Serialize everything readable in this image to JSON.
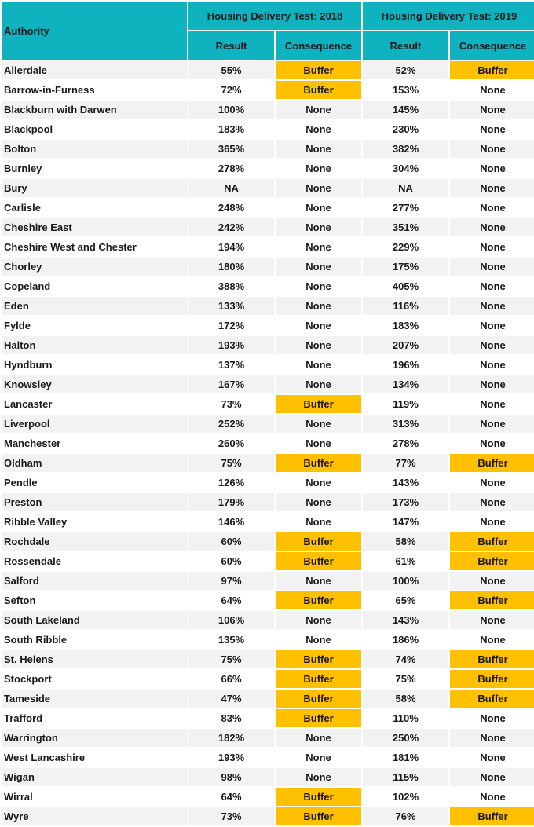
{
  "header": {
    "authority": "Authority",
    "group_2018": "Housing Delivery Test: 2018",
    "group_2019": "Housing Delivery Test: 2019",
    "result": "Result",
    "consequence": "Consequence"
  },
  "colors": {
    "header_bg": "#0fb3bf",
    "buffer_bg": "#ffc000",
    "row_alt_bg": "#f2f2f2"
  },
  "rows": [
    {
      "authority": "Allerdale",
      "r2018": "55%",
      "c2018": "Buffer",
      "r2019": "52%",
      "c2019": "Buffer"
    },
    {
      "authority": "Barrow-in-Furness",
      "r2018": "72%",
      "c2018": "Buffer",
      "r2019": "153%",
      "c2019": "None"
    },
    {
      "authority": "Blackburn with Darwen",
      "r2018": "100%",
      "c2018": "None",
      "r2019": "145%",
      "c2019": "None"
    },
    {
      "authority": "Blackpool",
      "r2018": "183%",
      "c2018": "None",
      "r2019": "230%",
      "c2019": "None"
    },
    {
      "authority": "Bolton",
      "r2018": "365%",
      "c2018": "None",
      "r2019": "382%",
      "c2019": "None"
    },
    {
      "authority": "Burnley",
      "r2018": "278%",
      "c2018": "None",
      "r2019": "304%",
      "c2019": "None"
    },
    {
      "authority": "Bury",
      "r2018": "NA",
      "c2018": "None",
      "r2019": "NA",
      "c2019": "None"
    },
    {
      "authority": "Carlisle",
      "r2018": "248%",
      "c2018": "None",
      "r2019": "277%",
      "c2019": "None"
    },
    {
      "authority": "Cheshire East",
      "r2018": "242%",
      "c2018": "None",
      "r2019": "351%",
      "c2019": "None"
    },
    {
      "authority": "Cheshire West and Chester",
      "r2018": "194%",
      "c2018": "None",
      "r2019": "229%",
      "c2019": "None"
    },
    {
      "authority": "Chorley",
      "r2018": "180%",
      "c2018": "None",
      "r2019": "175%",
      "c2019": "None"
    },
    {
      "authority": "Copeland",
      "r2018": "388%",
      "c2018": "None",
      "r2019": "405%",
      "c2019": "None"
    },
    {
      "authority": "Eden",
      "r2018": "133%",
      "c2018": "None",
      "r2019": "116%",
      "c2019": "None"
    },
    {
      "authority": "Fylde",
      "r2018": "172%",
      "c2018": "None",
      "r2019": "183%",
      "c2019": "None"
    },
    {
      "authority": "Halton",
      "r2018": "193%",
      "c2018": "None",
      "r2019": "207%",
      "c2019": "None"
    },
    {
      "authority": "Hyndburn",
      "r2018": "137%",
      "c2018": "None",
      "r2019": "196%",
      "c2019": "None"
    },
    {
      "authority": "Knowsley",
      "r2018": "167%",
      "c2018": "None",
      "r2019": "134%",
      "c2019": "None"
    },
    {
      "authority": "Lancaster",
      "r2018": "73%",
      "c2018": "Buffer",
      "r2019": "119%",
      "c2019": "None"
    },
    {
      "authority": "Liverpool",
      "r2018": "252%",
      "c2018": "None",
      "r2019": "313%",
      "c2019": "None"
    },
    {
      "authority": "Manchester",
      "r2018": "260%",
      "c2018": "None",
      "r2019": "278%",
      "c2019": "None"
    },
    {
      "authority": "Oldham",
      "r2018": "75%",
      "c2018": "Buffer",
      "r2019": "77%",
      "c2019": "Buffer"
    },
    {
      "authority": "Pendle",
      "r2018": "126%",
      "c2018": "None",
      "r2019": "143%",
      "c2019": "None"
    },
    {
      "authority": "Preston",
      "r2018": "179%",
      "c2018": "None",
      "r2019": "173%",
      "c2019": "None"
    },
    {
      "authority": "Ribble Valley",
      "r2018": "146%",
      "c2018": "None",
      "r2019": "147%",
      "c2019": "None"
    },
    {
      "authority": "Rochdale",
      "r2018": "60%",
      "c2018": "Buffer",
      "r2019": "58%",
      "c2019": "Buffer"
    },
    {
      "authority": "Rossendale",
      "r2018": "60%",
      "c2018": "Buffer",
      "r2019": "61%",
      "c2019": "Buffer"
    },
    {
      "authority": "Salford",
      "r2018": "97%",
      "c2018": "None",
      "r2019": "100%",
      "c2019": "None"
    },
    {
      "authority": "Sefton",
      "r2018": "64%",
      "c2018": "Buffer",
      "r2019": "65%",
      "c2019": "Buffer"
    },
    {
      "authority": "South Lakeland",
      "r2018": "106%",
      "c2018": "None",
      "r2019": "143%",
      "c2019": "None"
    },
    {
      "authority": "South Ribble",
      "r2018": "135%",
      "c2018": "None",
      "r2019": "186%",
      "c2019": "None"
    },
    {
      "authority": "St. Helens",
      "r2018": "75%",
      "c2018": "Buffer",
      "r2019": "74%",
      "c2019": "Buffer"
    },
    {
      "authority": "Stockport",
      "r2018": "66%",
      "c2018": "Buffer",
      "r2019": "75%",
      "c2019": "Buffer"
    },
    {
      "authority": "Tameside",
      "r2018": "47%",
      "c2018": "Buffer",
      "r2019": "58%",
      "c2019": "Buffer"
    },
    {
      "authority": "Trafford",
      "r2018": "83%",
      "c2018": "Buffer",
      "r2019": "110%",
      "c2019": "None"
    },
    {
      "authority": "Warrington",
      "r2018": "182%",
      "c2018": "None",
      "r2019": "250%",
      "c2019": "None"
    },
    {
      "authority": "West Lancashire",
      "r2018": "193%",
      "c2018": "None",
      "r2019": "181%",
      "c2019": "None"
    },
    {
      "authority": "Wigan",
      "r2018": "98%",
      "c2018": "None",
      "r2019": "115%",
      "c2019": "None"
    },
    {
      "authority": "Wirral",
      "r2018": "64%",
      "c2018": "Buffer",
      "r2019": "102%",
      "c2019": "None"
    },
    {
      "authority": "Wyre",
      "r2018": "73%",
      "c2018": "Buffer",
      "r2019": "76%",
      "c2019": "Buffer"
    }
  ]
}
